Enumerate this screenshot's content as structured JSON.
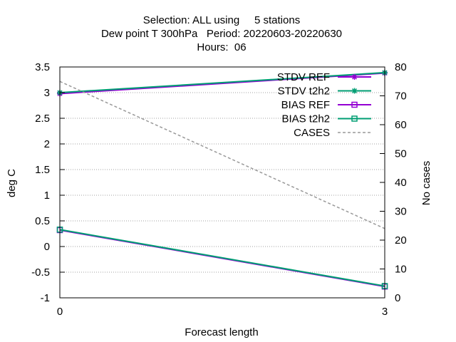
{
  "chart_data": {
    "type": "line",
    "title_lines": [
      "Selection: ALL using     5 stations",
      "Dew point T 300hPa   Period: 20220603-20220630",
      "Hours:  06"
    ],
    "xlabel": "Forecast length",
    "ylabel": "deg C",
    "y2label": "No cases",
    "x": [
      0,
      3
    ],
    "x_ticks": [
      "0",
      "3"
    ],
    "xlim": [
      0,
      3
    ],
    "ylim": [
      -1,
      3.5
    ],
    "y_ticks": [
      "-1",
      "-0.5",
      "0",
      "0.5",
      "1",
      "1.5",
      "2",
      "2.5",
      "3",
      "3.5"
    ],
    "y2lim": [
      0,
      80
    ],
    "y2_ticks": [
      "0",
      "10",
      "20",
      "30",
      "40",
      "50",
      "60",
      "70",
      "80"
    ],
    "grid": true,
    "legend_position": "top-right",
    "series": [
      {
        "name": "STDV REF",
        "axis": "y",
        "values": [
          2.98,
          3.38
        ],
        "color": "#9400d3",
        "marker": "star",
        "dash": ""
      },
      {
        "name": "STDV t2h2",
        "axis": "y",
        "values": [
          3.0,
          3.39
        ],
        "color": "#009e73",
        "marker": "star",
        "dash": ""
      },
      {
        "name": "BIAS REF",
        "axis": "y",
        "values": [
          0.32,
          -0.78
        ],
        "color": "#9400d3",
        "marker": "square",
        "dash": ""
      },
      {
        "name": "BIAS t2h2",
        "axis": "y",
        "values": [
          0.33,
          -0.77
        ],
        "color": "#009e73",
        "marker": "square",
        "dash": ""
      },
      {
        "name": "CASES",
        "axis": "y2",
        "values": [
          75,
          24
        ],
        "color": "#999999",
        "marker": "none",
        "dash": "4,3"
      }
    ]
  }
}
